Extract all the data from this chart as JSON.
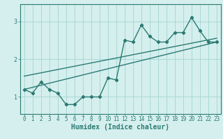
{
  "title": "",
  "xlabel": "Humidex (Indice chaleur)",
  "x_values": [
    0,
    1,
    2,
    3,
    4,
    5,
    6,
    7,
    8,
    9,
    10,
    11,
    12,
    13,
    14,
    15,
    16,
    17,
    18,
    19,
    20,
    21,
    22,
    23
  ],
  "line1_y": [
    1.2,
    1.1,
    1.4,
    1.2,
    1.1,
    0.8,
    0.8,
    1.0,
    1.0,
    1.0,
    1.5,
    1.45,
    2.5,
    2.45,
    2.9,
    2.6,
    2.45,
    2.45,
    2.7,
    2.7,
    3.1,
    2.75,
    2.45,
    2.45
  ],
  "trend1_x": [
    0,
    23
  ],
  "trend1_y": [
    1.2,
    2.45
  ],
  "trend2_x": [
    0,
    23
  ],
  "trend2_y": [
    1.55,
    2.55
  ],
  "bg_color": "#d5efee",
  "grid_color": "#a8d8d4",
  "line_color": "#2a7a72",
  "yticks": [
    1,
    2,
    3
  ],
  "ylim": [
    0.55,
    3.45
  ],
  "xlim": [
    -0.5,
    23.5
  ],
  "marker": "D",
  "markersize": 2.2,
  "linewidth": 1.0,
  "tick_fontsize": 5.5,
  "xlabel_fontsize": 7.0
}
